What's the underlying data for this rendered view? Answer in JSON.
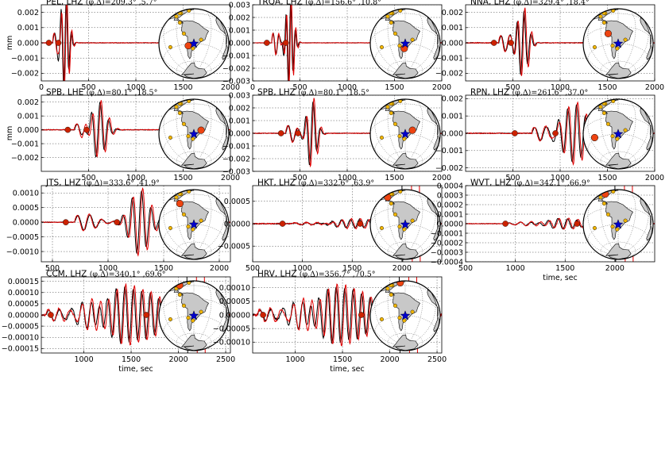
{
  "figure": {
    "colors": {
      "observed": "#000000",
      "synthetic": "#e00000",
      "marker": "#cc2200",
      "land": "#c8c8c8",
      "station": "#f0b400",
      "event": "#0000cc"
    }
  },
  "chart_data": [
    {
      "type": "line",
      "title": "PEL, LHZ ",
      "angles": "(φ,Δ)=209.3° ,5.7°",
      "xlabel": "",
      "ylabel": "mm",
      "xlim": [
        0,
        2000
      ],
      "xticks": [
        0,
        500,
        1000,
        1500,
        2000
      ],
      "ylim": [
        -0.0025,
        0.0025
      ],
      "yticks": [
        -0.002,
        -0.001,
        0.0,
        0.001,
        0.002
      ],
      "ytick_labels": [
        "−0.002",
        "−0.001",
        "0.000",
        "0.001",
        "0.002"
      ],
      "markers_x": [
        80,
        180
      ],
      "station_lat": -33,
      "station_lon": -71,
      "wave": {
        "center": 250,
        "amp": 0.003,
        "period": 55,
        "width": 55,
        "onset": 120,
        "noise": 3e-05
      }
    },
    {
      "type": "line",
      "title": "TRQA, LHZ ",
      "angles": "(φ,Δ)=156.6° ,10.8°",
      "xlabel": "",
      "ylabel": "",
      "xlim": [
        0,
        2000
      ],
      "xticks": [
        0,
        500,
        1000,
        1500,
        2000
      ],
      "ylim": [
        -0.003,
        0.003
      ],
      "yticks": [
        -0.003,
        -0.002,
        -0.001,
        0.0,
        0.001,
        0.002,
        0.003
      ],
      "ytick_labels": [
        "−0.003",
        "−0.002",
        "−0.001",
        "0.000",
        "0.001",
        "0.002",
        "0.003"
      ],
      "markers_x": [
        150,
        350
      ],
      "station_lat": -38,
      "station_lon": -62,
      "wave": {
        "center": 390,
        "amp": 0.0035,
        "period": 50,
        "width": 55,
        "onset": 200,
        "noise": 3e-05
      }
    },
    {
      "type": "line",
      "title": "NNA, LHZ ",
      "angles": "(φ,Δ)=329.4° ,18.4°",
      "xlabel": "",
      "ylabel": "",
      "xlim": [
        0,
        2000
      ],
      "xticks": [
        500,
        1000,
        1500,
        2000
      ],
      "ylim": [
        -0.0025,
        0.0025
      ],
      "yticks": [
        -0.002,
        -0.001,
        0.0,
        0.001,
        0.002
      ],
      "ytick_labels": [
        "−0.002",
        "−0.001",
        "0.000",
        "0.001",
        "0.002"
      ],
      "markers_x": [
        300,
        480
      ],
      "station_lat": -12,
      "station_lon": -77,
      "wave": {
        "center": 600,
        "amp": 0.0022,
        "period": 75,
        "width": 80,
        "onset": 350,
        "noise": 4e-05
      }
    },
    {
      "type": "line",
      "title": "SPB, LHE ",
      "angles": "(φ,Δ)=80.1° ,18.5°",
      "xlabel": "",
      "ylabel": "mm",
      "xlim": [
        0,
        2000
      ],
      "xticks": [
        500,
        1000,
        1500,
        2000
      ],
      "ylim": [
        -0.003,
        0.0025
      ],
      "yticks": [
        -0.002,
        -0.001,
        0.0,
        0.001,
        0.002
      ],
      "ytick_labels": [
        "−0.002",
        "−0.001",
        "0.000",
        "0.001",
        "0.002"
      ],
      "markers_x": [
        280,
        480
      ],
      "station_lat": -23,
      "station_lon": -47,
      "wave": {
        "center": 600,
        "amp": 0.002,
        "period": 90,
        "width": 110,
        "onset": 350,
        "noise": 4e-05
      }
    },
    {
      "type": "line",
      "title": "SPB, LHZ ",
      "angles": "(φ,Δ)=80.1° ,18.5°",
      "xlabel": "",
      "ylabel": "",
      "xlim": [
        0,
        2000
      ],
      "xticks": [
        500,
        1000,
        1500,
        2000
      ],
      "ylim": [
        -0.003,
        0.003
      ],
      "yticks": [
        -0.003,
        -0.002,
        -0.001,
        0.0,
        0.001,
        0.002,
        0.003
      ],
      "ytick_labels": [
        "−0.003",
        "−0.002",
        "−0.001",
        "0.000",
        "0.001",
        "0.002",
        "0.003"
      ],
      "markers_x": [
        300,
        480
      ],
      "station_lat": -23,
      "station_lon": -47,
      "wave": {
        "center": 620,
        "amp": 0.0027,
        "period": 80,
        "width": 70,
        "onset": 350,
        "noise": 4e-05
      }
    },
    {
      "type": "line",
      "title": "RPN, LHZ ",
      "angles": "(φ,Δ)=261.6° ,37.0°",
      "xlabel": "",
      "ylabel": "",
      "xlim": [
        0,
        2000
      ],
      "xticks": [
        500,
        1000,
        1500,
        2000
      ],
      "ylim": [
        -0.0022,
        0.0022
      ],
      "yticks": [
        -0.002,
        -0.001,
        0.0,
        0.001,
        0.002
      ],
      "ytick_labels": [
        "−0.002",
        "−0.001",
        "0.000",
        "0.001",
        "0.002"
      ],
      "markers_x": [
        520,
        950
      ],
      "station_lat": -27,
      "station_lon": -109,
      "wave": {
        "center": 1150,
        "amp": 0.0017,
        "period": 95,
        "width": 160,
        "onset": 700,
        "noise": 4e-05
      }
    },
    {
      "type": "line",
      "title": "JTS, LHZ ",
      "angles": "(φ,Δ)=333.6° ,41.9°",
      "xlabel": "",
      "ylabel": "",
      "xlim": [
        400,
        2100
      ],
      "xticks": [
        500,
        1000,
        1500,
        2000
      ],
      "ylim": [
        -0.00135,
        0.00125
      ],
      "yticks": [
        -0.001,
        -0.0005,
        0.0,
        0.0005,
        0.001
      ],
      "ytick_labels": [
        "−0.0010",
        "−0.0005",
        "0.0000",
        "0.0005",
        "0.0010"
      ],
      "markers_x": [
        620,
        1080
      ],
      "station_lat": 10,
      "station_lon": -84,
      "wave": {
        "center": 1280,
        "amp": 0.0011,
        "period": 85,
        "width": 120,
        "onset": 700,
        "noise": 2e-05
      }
    },
    {
      "type": "line",
      "title": "HKT, LHZ ",
      "angles": "(φ,Δ)=332.6° ,63.9°",
      "xlabel": "",
      "ylabel": "",
      "xlim": [
        500,
        2400
      ],
      "xticks": [
        500,
        1000,
        1500,
        2000
      ],
      "ylim": [
        -0.00085,
        0.00085
      ],
      "yticks": [
        -0.0005,
        0.0,
        0.0005
      ],
      "ytick_labels": [
        "−0.0005",
        "0.0000",
        "0.0005"
      ],
      "markers_x": [
        800,
        1580
      ],
      "station_lat": 29,
      "station_lon": -95,
      "wave": {
        "center": 1550,
        "amp": 0.0001,
        "period": 90,
        "width": 280,
        "onset": 900,
        "noise": 2e-05
      },
      "spike_x": 2000
    },
    {
      "type": "line",
      "title": "WVT, LHZ ",
      "angles": "(φ,Δ)=342.1° ,66.9°",
      "xlabel": "time, sec",
      "ylabel": "",
      "xlim": [
        500,
        2400
      ],
      "xticks": [
        500,
        1000,
        1500,
        2000
      ],
      "ylim": [
        -0.0004,
        0.0004
      ],
      "yticks": [
        -0.0004,
        -0.0003,
        -0.0002,
        -0.0001,
        0.0,
        0.0001,
        0.0002,
        0.0003,
        0.0004
      ],
      "ytick_labels": [
        "−0.0004",
        "−0.0003",
        "−0.0002",
        "−0.0001",
        "0.0000",
        "0.0001",
        "0.0002",
        "0.0003",
        "0.0004"
      ],
      "markers_x": [
        900,
        1620
      ],
      "station_lat": 36,
      "station_lon": -87,
      "wave": {
        "center": 1500,
        "amp": 5e-05,
        "period": 95,
        "width": 300,
        "onset": 900,
        "noise": 5e-06
      },
      "spike_x": 2000
    },
    {
      "type": "line",
      "title": "CCM, LHZ ",
      "angles": "(φ,Δ)=340.1° ,69.6°",
      "xlabel": "time, sec",
      "ylabel": "",
      "xlim": [
        550,
        2550
      ],
      "xticks": [
        1000,
        1500,
        2000,
        2500
      ],
      "ylim": [
        -0.00017,
        0.00017
      ],
      "yticks": [
        -0.00015,
        -0.0001,
        -5e-05,
        0.0,
        5e-05,
        0.0001,
        0.00015
      ],
      "ytick_labels": [
        "−0.00015",
        "−0.00010",
        "−0.00005",
        "0.00000",
        "0.00005",
        "0.00010",
        "0.00015"
      ],
      "markers_x": [
        650,
        1660
      ],
      "station_lat": 38,
      "station_lon": -91,
      "wave": {
        "center": 1500,
        "amp": 0.00012,
        "period": 90,
        "width": 420,
        "onset": 600,
        "noise": 6e-06
      },
      "spike_x": 2090
    },
    {
      "type": "line",
      "title": "HRV, LHZ ",
      "angles": "(φ,Δ)=356.7° ,70.5°",
      "xlabel": "time, sec",
      "ylabel": "",
      "xlim": [
        550,
        2550
      ],
      "xticks": [
        1000,
        1500,
        2000,
        2500
      ],
      "ylim": [
        -0.00014,
        0.00014
      ],
      "yticks": [
        -0.0001,
        -5e-05,
        0.0,
        5e-05,
        0.0001
      ],
      "ytick_labels": [
        "−0.00010",
        "−0.00005",
        "0.00000",
        "0.00005",
        "0.00010"
      ],
      "markers_x": [
        660,
        1700
      ],
      "station_lat": 42,
      "station_lon": -71,
      "wave": {
        "center": 1500,
        "amp": 0.0001,
        "period": 90,
        "width": 420,
        "onset": 600,
        "noise": 6e-06
      },
      "spike_x": 2100
    }
  ]
}
